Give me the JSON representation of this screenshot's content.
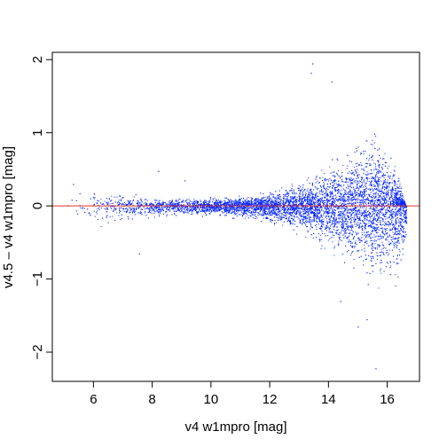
{
  "chart_data": {
    "type": "scatter",
    "title": "",
    "xlabel": "v4 w1mpro [mag]",
    "ylabel": "v4.5 – v4 w1mpro [mag]",
    "xlim": [
      4.6,
      17.1
    ],
    "ylim": [
      -2.4,
      2.1
    ],
    "xticks": [
      6,
      8,
      10,
      12,
      14,
      16
    ],
    "xtick_labels": [
      "6",
      "8",
      "10",
      "12",
      "14",
      "16"
    ],
    "yticks": [
      -2,
      -1,
      0,
      1,
      2
    ],
    "ytick_labels": [
      "−2",
      "−1",
      "0",
      "1",
      "2"
    ],
    "grid": false,
    "legend": "none",
    "reference_line": {
      "y": 0,
      "color": "#e0302a"
    },
    "point_color": "#0022ff",
    "envelope": [
      {
        "x": 5.0,
        "upper": 0.38,
        "lower": -0.2
      },
      {
        "x": 6.0,
        "upper": 0.25,
        "lower": -0.35
      },
      {
        "x": 7.0,
        "upper": 0.18,
        "lower": -0.25
      },
      {
        "x": 8.0,
        "upper": 0.14,
        "lower": -0.18
      },
      {
        "x": 9.0,
        "upper": 0.12,
        "lower": -0.15
      },
      {
        "x": 10.0,
        "upper": 0.13,
        "lower": -0.16
      },
      {
        "x": 11.0,
        "upper": 0.16,
        "lower": -0.18
      },
      {
        "x": 12.0,
        "upper": 0.22,
        "lower": -0.25
      },
      {
        "x": 13.0,
        "upper": 0.35,
        "lower": -0.4
      },
      {
        "x": 14.0,
        "upper": 0.6,
        "lower": -0.65
      },
      {
        "x": 15.0,
        "upper": 0.95,
        "lower": -1.0
      },
      {
        "x": 15.5,
        "upper": 1.1,
        "lower": -1.15
      },
      {
        "x": 16.0,
        "upper": 0.85,
        "lower": -1.1
      },
      {
        "x": 16.4,
        "upper": 0.4,
        "lower": -1.15
      },
      {
        "x": 16.65,
        "upper": 0.0,
        "lower": -0.6
      }
    ],
    "outliers": [
      {
        "x": 13.45,
        "y": 1.95
      },
      {
        "x": 13.4,
        "y": 1.82
      },
      {
        "x": 14.1,
        "y": 1.7
      },
      {
        "x": 15.6,
        "y": -2.22
      },
      {
        "x": 15.0,
        "y": -1.65
      },
      {
        "x": 15.3,
        "y": -1.55
      },
      {
        "x": 14.4,
        "y": -1.3
      },
      {
        "x": 7.55,
        "y": -0.65
      },
      {
        "x": 5.3,
        "y": 0.3
      },
      {
        "x": 8.2,
        "y": 0.48
      },
      {
        "x": 9.1,
        "y": 0.35
      }
    ]
  }
}
